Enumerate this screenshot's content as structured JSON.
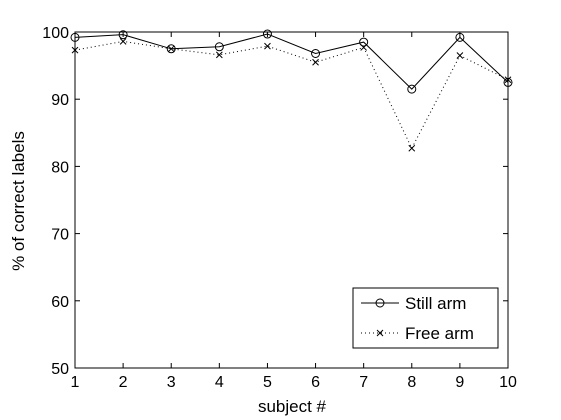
{
  "chart_data": {
    "type": "line",
    "title": "",
    "xlabel": "subject #",
    "ylabel": "% of correct labels",
    "xlim": [
      1,
      10
    ],
    "ylim": [
      50,
      100
    ],
    "x": [
      1,
      2,
      3,
      4,
      5,
      6,
      7,
      8,
      9,
      10
    ],
    "xticks": [
      "1",
      "2",
      "3",
      "4",
      "5",
      "6",
      "7",
      "8",
      "9",
      "10"
    ],
    "yticks": [
      "50",
      "60",
      "70",
      "80",
      "90",
      "100"
    ],
    "grid": false,
    "legend_position": "bottom-right",
    "series": [
      {
        "name": "Still arm",
        "values": [
          99.2,
          99.6,
          97.5,
          97.8,
          99.7,
          96.8,
          98.5,
          91.5,
          99.2,
          92.5
        ],
        "line_style": "solid",
        "marker": "circle",
        "color": "#000000"
      },
      {
        "name": "Free arm",
        "values": [
          97.3,
          98.6,
          97.5,
          96.6,
          97.9,
          95.5,
          97.7,
          82.7,
          96.5,
          92.9
        ],
        "line_style": "dotted",
        "marker": "x",
        "color": "#000000"
      }
    ]
  }
}
